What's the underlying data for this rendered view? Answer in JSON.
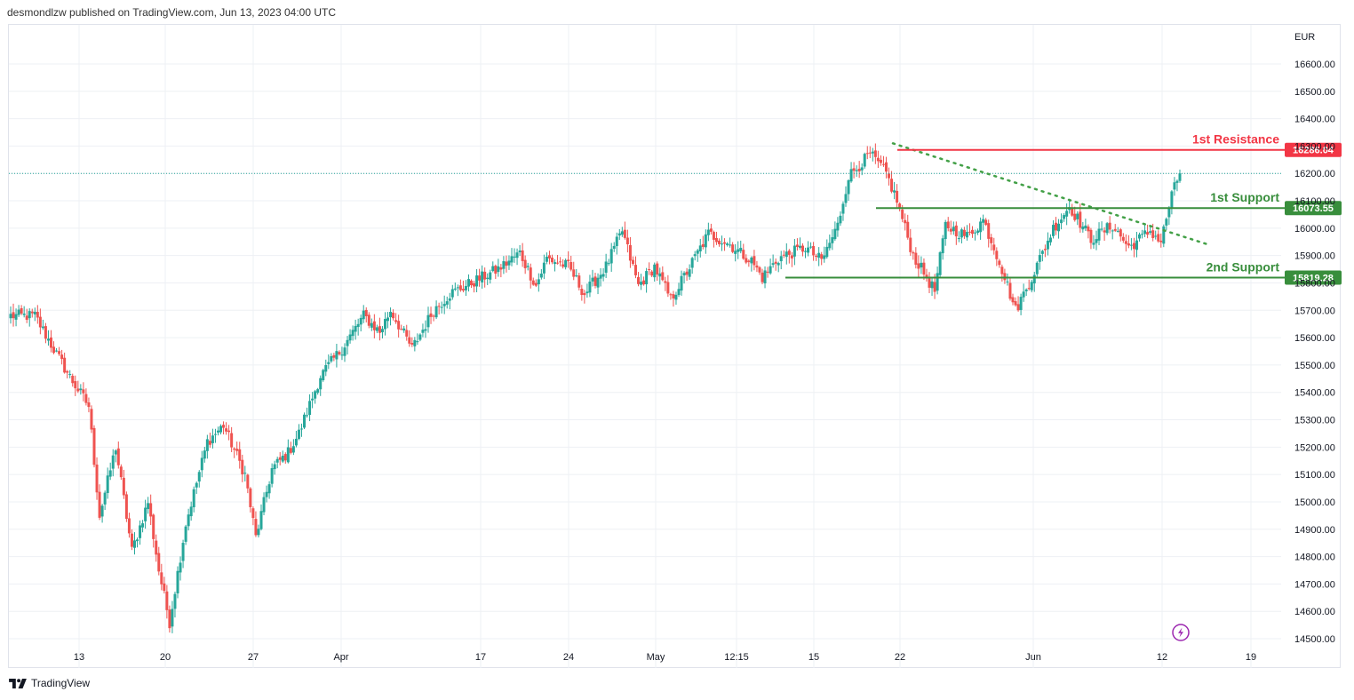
{
  "header": {
    "text": "desmondlzw published on TradingView.com, Jun 13, 2023 04:00 UTC"
  },
  "footer": {
    "brand": "TradingView"
  },
  "colors": {
    "up": "#26a69a",
    "down": "#ef5350",
    "resistance": "#f23645",
    "support": "#388e3c",
    "trend": "#43a047",
    "grid": "#eef0f4"
  },
  "chart_data": {
    "type": "candlestick",
    "currency": "EUR",
    "ylim": [
      14450,
      16700
    ],
    "y_ticks": [
      14500,
      14600,
      14700,
      14800,
      14900,
      15000,
      15100,
      15200,
      15300,
      15400,
      15500,
      15600,
      15700,
      15800,
      15900,
      16000,
      16100,
      16200,
      16300,
      16400,
      16500,
      16600
    ],
    "y_tick_labels": [
      "14500.00",
      "14600.00",
      "14700.00",
      "14800.00",
      "14900.00",
      "15000.00",
      "15100.00",
      "15200.00",
      "15300.00",
      "15400.00",
      "15500.00",
      "15600.00",
      "15700.00",
      "15800.00",
      "15900.00",
      "16000.00",
      "16100.00",
      "16200.00",
      "16300.00",
      "16400.00",
      "16500.00",
      "16600.00"
    ],
    "x_tick_labels": [
      "13",
      "20",
      "27",
      "Apr",
      "17",
      "24",
      "May",
      "12:15",
      "15",
      "22",
      "Jun",
      "12",
      "19"
    ],
    "current_price": 16200,
    "levels": [
      {
        "name": "1st Resistance",
        "value": 16286.04,
        "label": "16286.04",
        "kind": "resistance"
      },
      {
        "name": "1st Support",
        "value": 16073.55,
        "label": "16073.55",
        "kind": "support"
      },
      {
        "name": "2nd Support",
        "value": 15819.28,
        "label": "15819.28",
        "kind": "support"
      }
    ],
    "trendline": {
      "start": 16310,
      "end": 15940,
      "style": "dotted"
    },
    "price_path": [
      {
        "p": 15680,
        "n": 10
      },
      {
        "p": 15540,
        "n": 8
      },
      {
        "p": 15440,
        "n": 6
      },
      {
        "p": 15350,
        "n": 6
      },
      {
        "p": 14950,
        "n": 4
      },
      {
        "p": 15200,
        "n": 6
      },
      {
        "p": 14820,
        "n": 6
      },
      {
        "p": 15000,
        "n": 6
      },
      {
        "p": 14750,
        "n": 4
      },
      {
        "p": 14560,
        "n": 4
      },
      {
        "p": 14920,
        "n": 6
      },
      {
        "p": 15220,
        "n": 8
      },
      {
        "p": 15280,
        "n": 6
      },
      {
        "p": 15100,
        "n": 8
      },
      {
        "p": 14870,
        "n": 4
      },
      {
        "p": 15120,
        "n": 6
      },
      {
        "p": 15180,
        "n": 6
      },
      {
        "p": 15250,
        "n": 4
      },
      {
        "p": 15460,
        "n": 8
      },
      {
        "p": 15560,
        "n": 8
      },
      {
        "p": 15680,
        "n": 8
      },
      {
        "p": 15620,
        "n": 6
      },
      {
        "p": 15700,
        "n": 4
      },
      {
        "p": 15560,
        "n": 8
      },
      {
        "p": 15700,
        "n": 8
      },
      {
        "p": 15760,
        "n": 6
      },
      {
        "p": 15800,
        "n": 8
      },
      {
        "p": 15850,
        "n": 10
      },
      {
        "p": 15910,
        "n": 8
      },
      {
        "p": 15790,
        "n": 6
      },
      {
        "p": 15890,
        "n": 4
      },
      {
        "p": 15860,
        "n": 8
      },
      {
        "p": 15760,
        "n": 6
      },
      {
        "p": 15860,
        "n": 8
      },
      {
        "p": 15990,
        "n": 6
      },
      {
        "p": 15790,
        "n": 6
      },
      {
        "p": 15860,
        "n": 6
      },
      {
        "p": 15740,
        "n": 6
      },
      {
        "p": 15840,
        "n": 6
      },
      {
        "p": 15980,
        "n": 8
      },
      {
        "p": 15940,
        "n": 8
      },
      {
        "p": 15880,
        "n": 8
      },
      {
        "p": 15820,
        "n": 4
      },
      {
        "p": 15890,
        "n": 6
      },
      {
        "p": 15930,
        "n": 10
      },
      {
        "p": 15880,
        "n": 6
      },
      {
        "p": 16010,
        "n": 6
      },
      {
        "p": 16190,
        "n": 4
      },
      {
        "p": 16270,
        "n": 8
      },
      {
        "p": 16200,
        "n": 6
      },
      {
        "p": 16100,
        "n": 4
      },
      {
        "p": 15900,
        "n": 6
      },
      {
        "p": 15770,
        "n": 8
      },
      {
        "p": 16010,
        "n": 4
      },
      {
        "p": 15970,
        "n": 8
      },
      {
        "p": 16030,
        "n": 6
      },
      {
        "p": 15880,
        "n": 6
      },
      {
        "p": 15700,
        "n": 6
      },
      {
        "p": 15820,
        "n": 6
      },
      {
        "p": 16000,
        "n": 8
      },
      {
        "p": 16080,
        "n": 6
      },
      {
        "p": 15960,
        "n": 8
      },
      {
        "p": 16010,
        "n": 8
      },
      {
        "p": 15930,
        "n": 6
      },
      {
        "p": 15990,
        "n": 8
      },
      {
        "p": 15950,
        "n": 4
      },
      {
        "p": 16120,
        "n": 4
      },
      {
        "p": 16200,
        "n": 3
      }
    ]
  }
}
